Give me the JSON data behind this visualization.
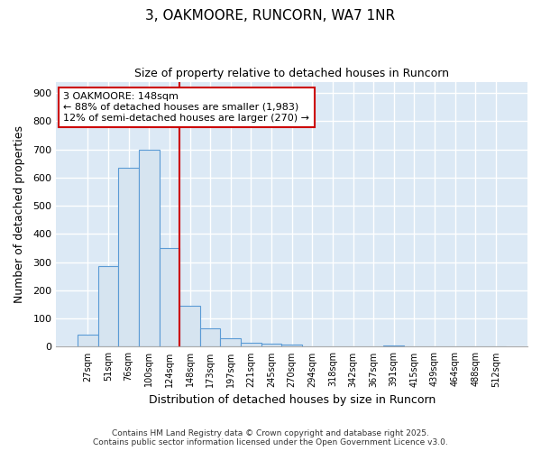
{
  "title": "3, OAKMOORE, RUNCORN, WA7 1NR",
  "subtitle": "Size of property relative to detached houses in Runcorn",
  "xlabel": "Distribution of detached houses by size in Runcorn",
  "ylabel": "Number of detached properties",
  "categories": [
    "27sqm",
    "51sqm",
    "76sqm",
    "100sqm",
    "124sqm",
    "148sqm",
    "173sqm",
    "197sqm",
    "221sqm",
    "245sqm",
    "270sqm",
    "294sqm",
    "318sqm",
    "342sqm",
    "367sqm",
    "391sqm",
    "415sqm",
    "439sqm",
    "464sqm",
    "488sqm",
    "512sqm"
  ],
  "values": [
    42,
    285,
    635,
    700,
    350,
    145,
    65,
    30,
    15,
    10,
    8,
    0,
    0,
    0,
    0,
    5,
    0,
    0,
    0,
    0,
    0
  ],
  "bar_color": "#d6e4f0",
  "bar_edge_color": "#5b9bd5",
  "vline_x_index": 5,
  "vline_color": "#cc0000",
  "annotation_text": "3 OAKMOORE: 148sqm\n← 88% of detached houses are smaller (1,983)\n12% of semi-detached houses are larger (270) →",
  "annotation_box_color": "#ffffff",
  "annotation_box_edge_color": "#cc0000",
  "ylim": [
    0,
    940
  ],
  "yticks": [
    0,
    100,
    200,
    300,
    400,
    500,
    600,
    700,
    800,
    900
  ],
  "footer1": "Contains HM Land Registry data © Crown copyright and database right 2025.",
  "footer2": "Contains public sector information licensed under the Open Government Licence v3.0.",
  "bg_color": "#ffffff",
  "plot_bg_color": "#dce9f5"
}
